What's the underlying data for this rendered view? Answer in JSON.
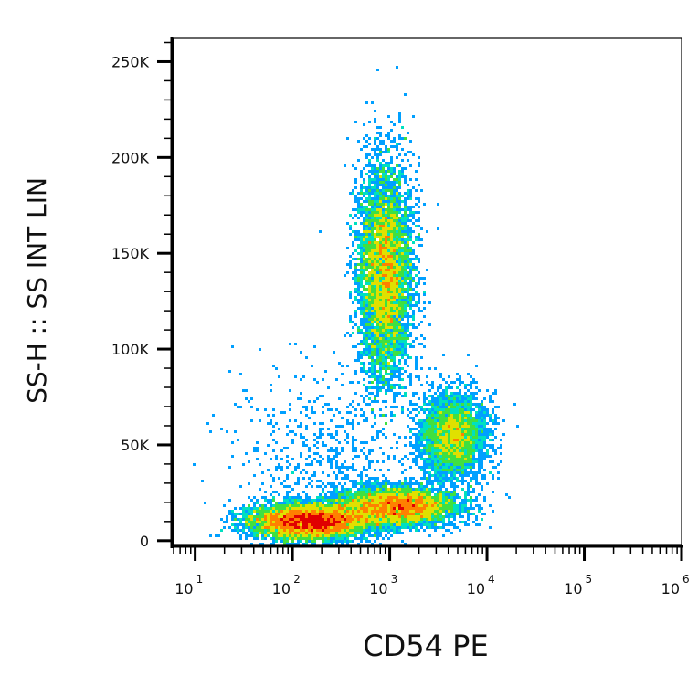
{
  "chart_data": {
    "type": "scatter",
    "title": "",
    "xlabel": "CD54 PE",
    "ylabel": "SS-H :: SS INT LIN",
    "x_scale": "log",
    "xlim": [
      6,
      1000000
    ],
    "ylim": [
      -2000,
      262144
    ],
    "x_ticks": [
      {
        "value": 10,
        "base": "10",
        "exp": "1"
      },
      {
        "value": 100,
        "base": "10",
        "exp": "2"
      },
      {
        "value": 1000,
        "base": "10",
        "exp": "3"
      },
      {
        "value": 10000,
        "base": "10",
        "exp": "4"
      },
      {
        "value": 100000,
        "base": "10",
        "exp": "5"
      },
      {
        "value": 1000000,
        "base": "10",
        "exp": "6"
      }
    ],
    "y_ticks": [
      {
        "value": 0,
        "label": "0"
      },
      {
        "value": 50000,
        "label": "50K"
      },
      {
        "value": 100000,
        "label": "100K"
      },
      {
        "value": 150000,
        "label": "150K"
      },
      {
        "value": 200000,
        "label": "200K"
      },
      {
        "value": 250000,
        "label": "250K"
      }
    ],
    "grid": false,
    "colormap": [
      "#0000ee",
      "#00a0ff",
      "#00e0c0",
      "#40e040",
      "#e0e000",
      "#ff8000",
      "#e00000"
    ],
    "populations": [
      {
        "x_center": 150,
        "y_center": 10000,
        "x_sd_decades": 0.3,
        "y_sd": 4500,
        "relative_size": 1.0
      },
      {
        "x_center": 1200,
        "y_center": 18000,
        "x_sd_decades": 0.3,
        "y_sd": 5000,
        "relative_size": 0.7
      },
      {
        "x_center": 900,
        "y_center": 140000,
        "x_sd_decades": 0.14,
        "y_sd": 28000,
        "relative_size": 1.0
      },
      {
        "x_center": 4500,
        "y_center": 55000,
        "x_sd_decades": 0.17,
        "y_sd": 11000,
        "relative_size": 0.4
      },
      {
        "x_center": 250,
        "y_center": 40000,
        "x_sd_decades": 0.5,
        "y_sd": 25000,
        "relative_size": 0.08
      }
    ]
  }
}
